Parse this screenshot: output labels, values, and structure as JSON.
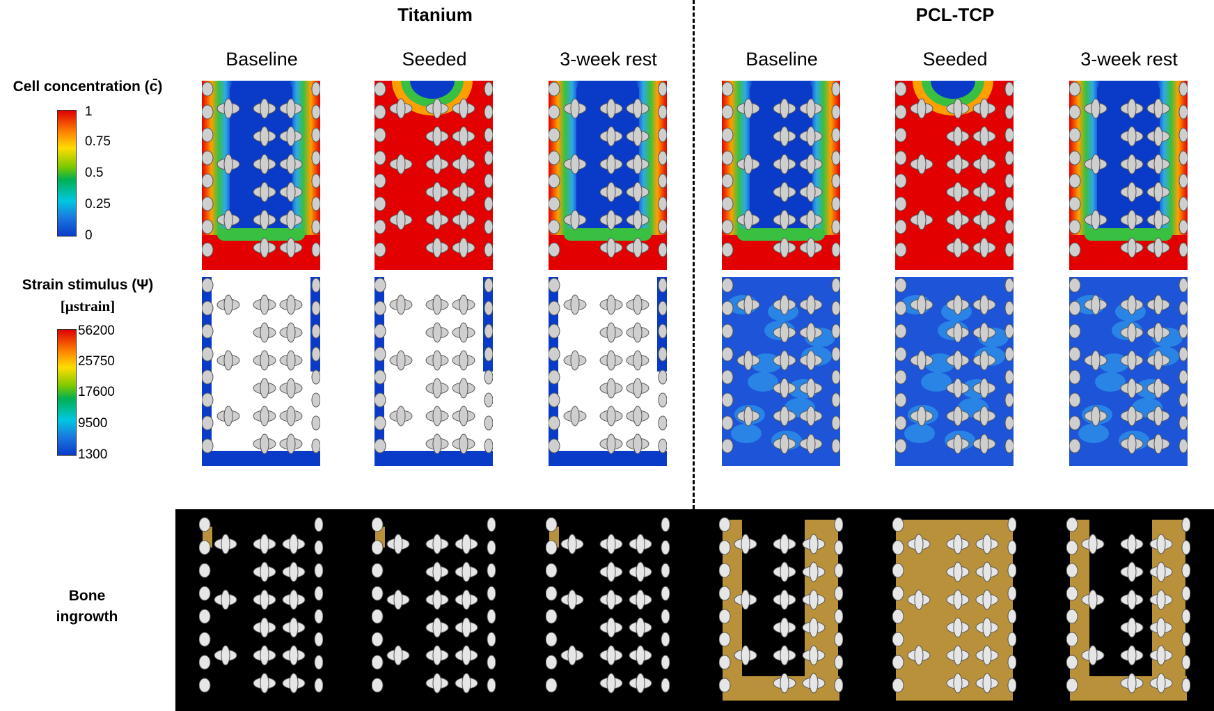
{
  "groups": {
    "titanium": "Titanium",
    "pcl": "PCL-TCP"
  },
  "columns": [
    "Baseline",
    "Seeded",
    "3-week rest",
    "Baseline",
    "Seeded",
    "3-week rest"
  ],
  "legend_cell": {
    "title": "Cell concentration (c̄)",
    "ticks": [
      "1",
      "0.75",
      "0.5",
      "0.25",
      "0"
    ]
  },
  "legend_strain": {
    "title_line1": "Strain stimulus (Ψ)",
    "title_line2": "[μstrain]",
    "ticks": [
      "56200",
      "25750",
      "17600",
      "9500",
      "1300"
    ]
  },
  "bone": {
    "line1": "Bone",
    "line2": "ingrowth"
  },
  "colors": {
    "red": "#e30000",
    "blue": "#0a3bc8",
    "bone": "#b8913a",
    "gray": "#cfcfcf",
    "green": "#2fb845",
    "cyan": "#2fa8e8"
  }
}
